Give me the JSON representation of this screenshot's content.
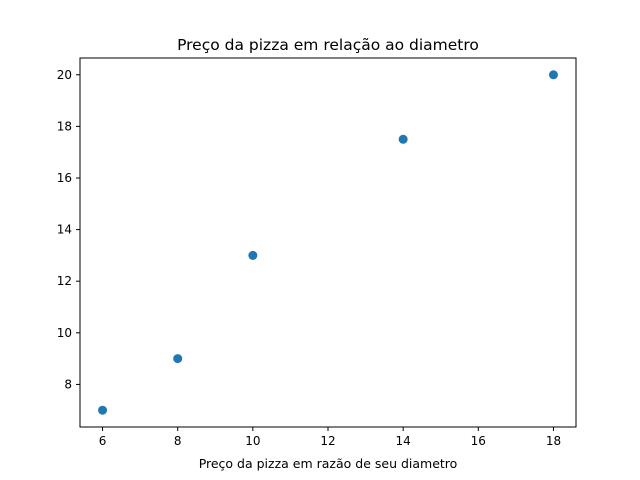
{
  "chart_data": {
    "type": "scatter",
    "title": "Preço da pizza em relação ao diametro",
    "xlabel": "Preço da pizza em razão de seu diametro",
    "ylabel": "",
    "xlim": [
      5.4,
      18.6
    ],
    "ylim": [
      6.35,
      20.65
    ],
    "xticks": [
      6,
      8,
      10,
      12,
      14,
      16,
      18
    ],
    "yticks": [
      8,
      10,
      12,
      14,
      16,
      18,
      20
    ],
    "grid": false,
    "series": [
      {
        "color": "#1f77b4",
        "points": [
          {
            "x": 6,
            "y": 7
          },
          {
            "x": 8,
            "y": 9
          },
          {
            "x": 10,
            "y": 13
          },
          {
            "x": 14,
            "y": 17.5
          },
          {
            "x": 18,
            "y": 20
          }
        ]
      }
    ]
  }
}
